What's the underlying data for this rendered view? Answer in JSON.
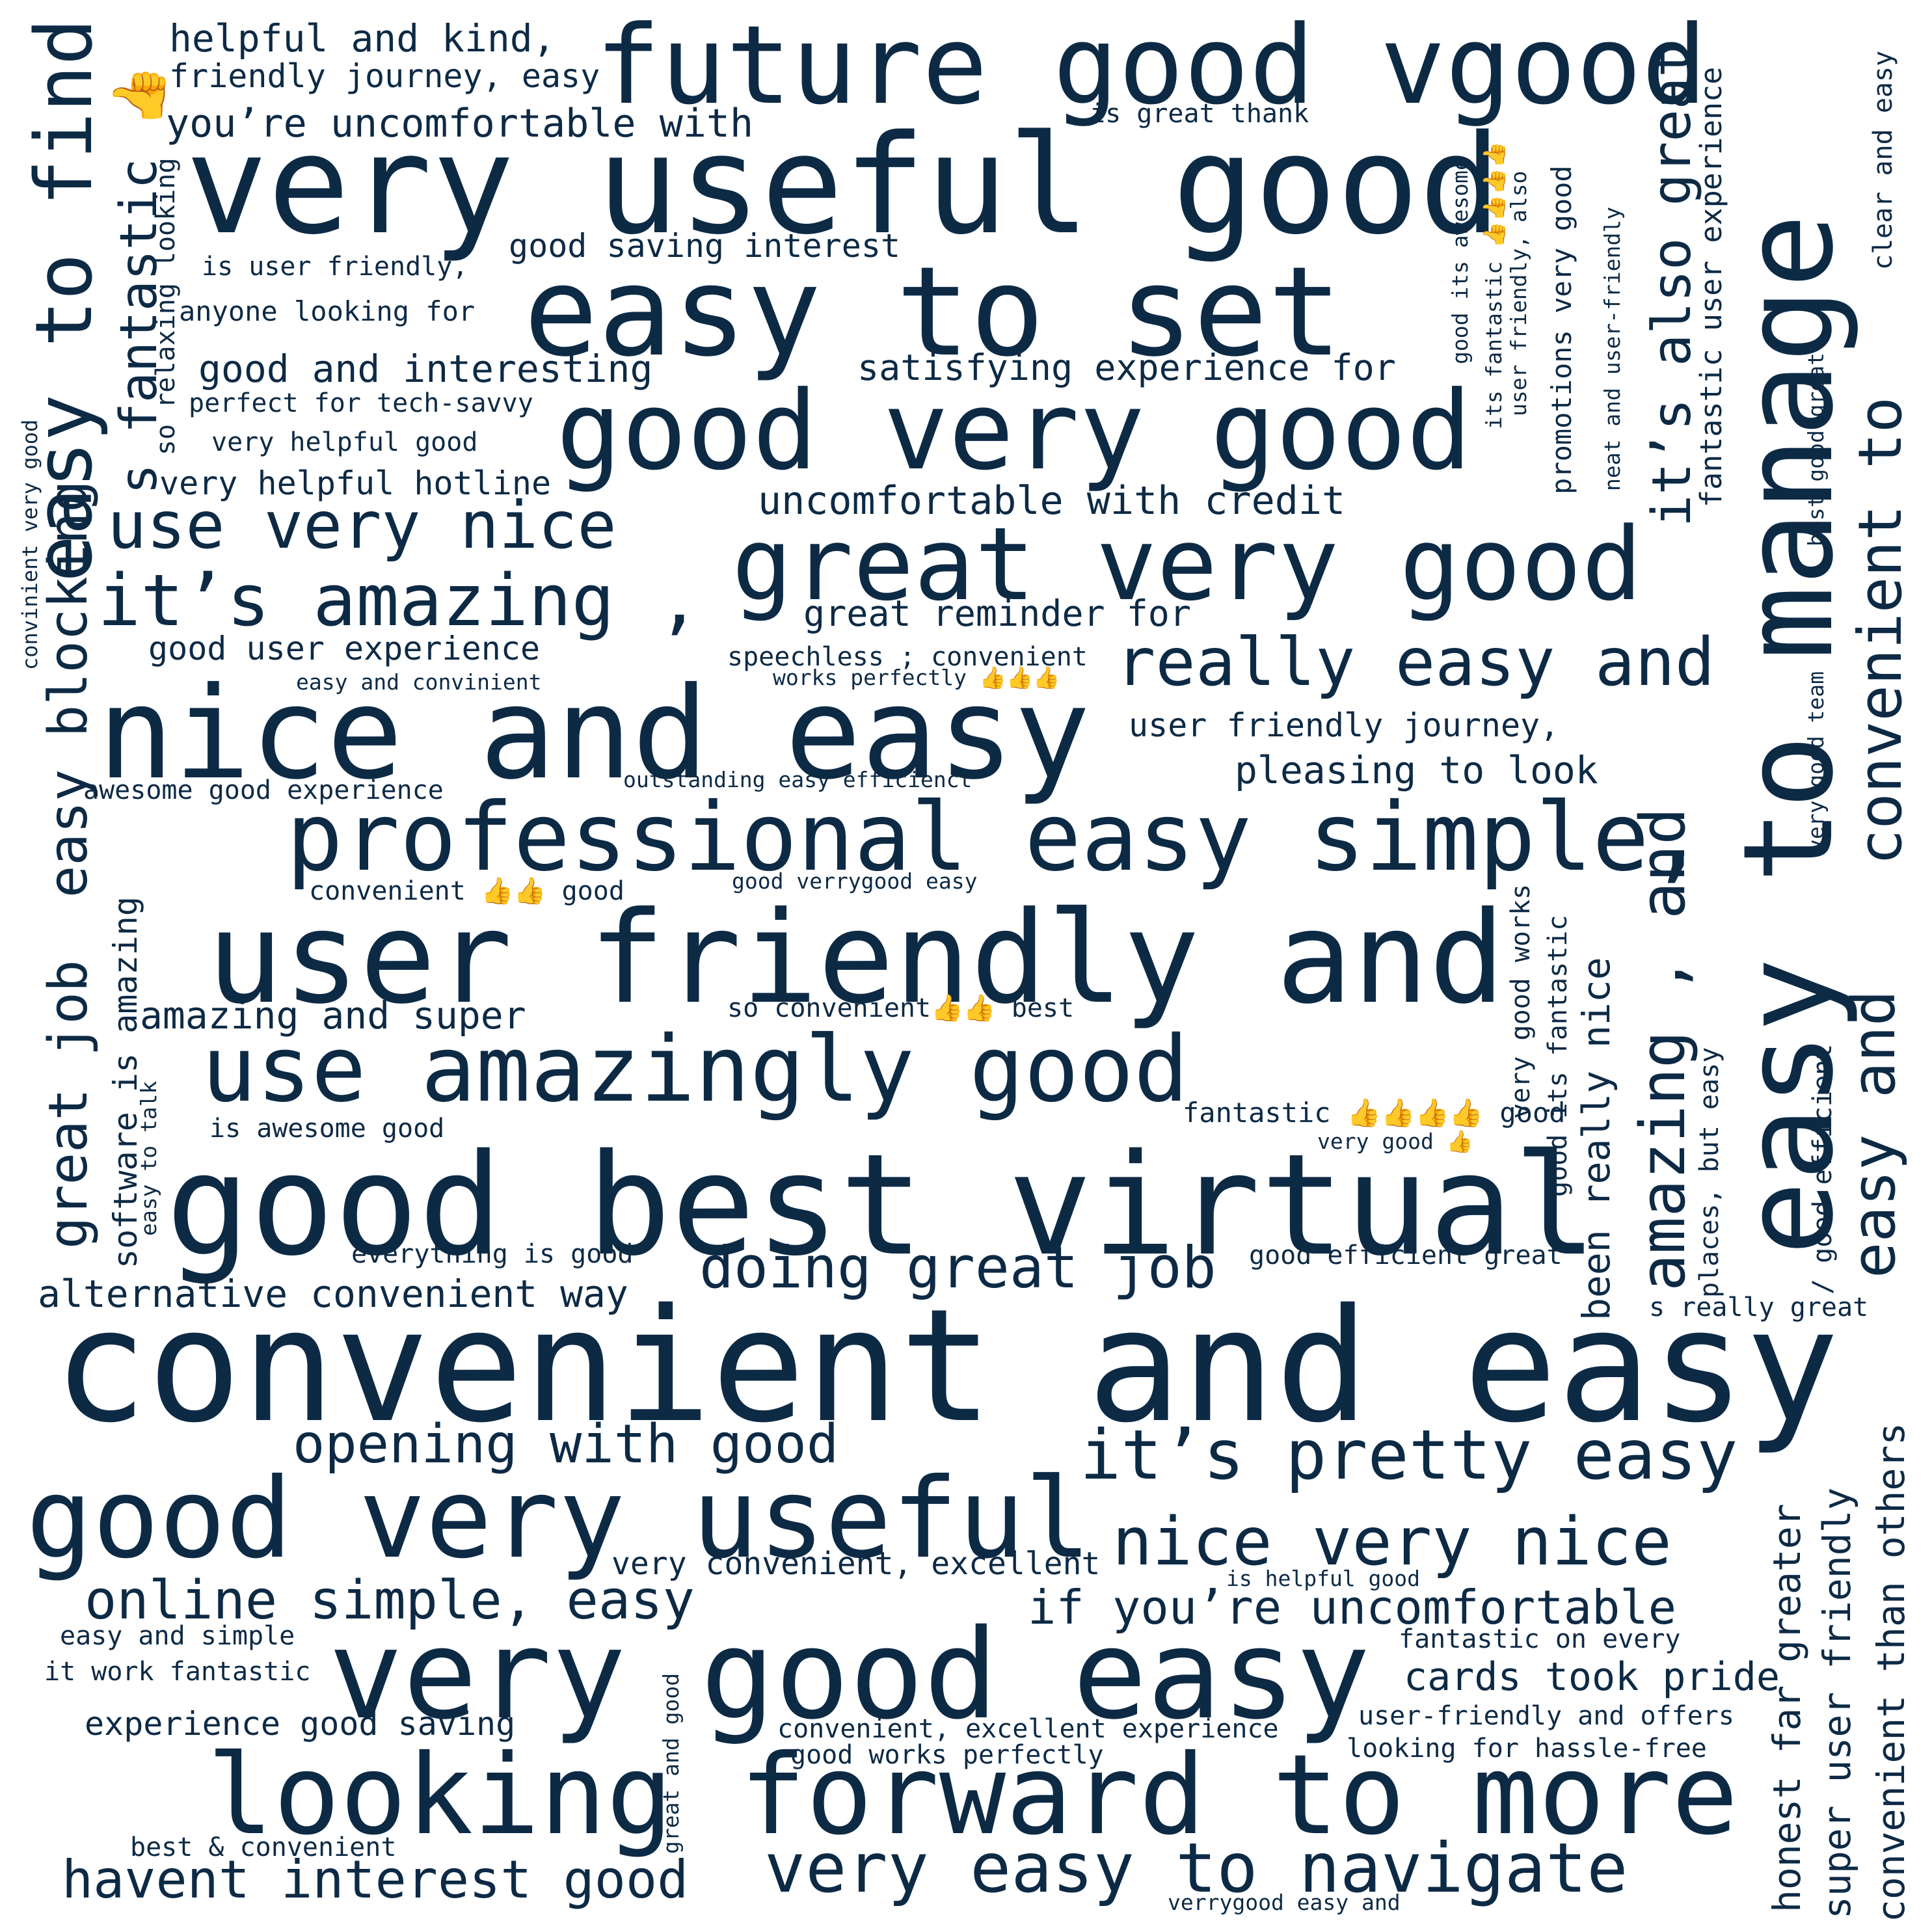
{
  "colors": {
    "background": "#ffffff",
    "text": "#0d2a45"
  },
  "words": {
    "w01": "future good vgood",
    "w02": "very useful good",
    "w03": "easy to set",
    "w04": "good very good",
    "w05": "great very good",
    "w06": "nice and easy",
    "w07": "professional easy simple,",
    "w08": "user friendly and",
    "w09": "use amazingly good",
    "w10": "good best virtual",
    "w11": "convenient and easy",
    "w12": "good very useful",
    "w13": "very good easy",
    "w14": "looking forward to more",
    "w15": "very easy to navigate",
    "w16": "it’s pretty easy",
    "w17": "nice very nice",
    "w18": "really easy and",
    "w19": "it’s amazing ,",
    "w20": "use very nice",
    "w21": "doing great job",
    "w22": "opening with good",
    "w23": "online simple, easy",
    "w24": "havent interest good",
    "w25": "if you’re uncomfortable",
    "w26": "cards took pride",
    "w27": "alternative convenient way",
    "w28": "helpful and kind,",
    "w29": "friendly journey, easy",
    "w30": "you’re uncomfortable with",
    "w31": "good saving interest",
    "w32": "is user friendly,",
    "w33": "anyone looking for",
    "w34": "good and interesting",
    "w35": "perfect for tech-savvy",
    "w36": "very helpful good",
    "w37": "very helpful hotline",
    "w38": "good user experience",
    "w39": "easy and convinient",
    "w40": "awesome good experience",
    "w41": "convenient 👍👍 good",
    "w42": "amazing and super",
    "w43": "is awesome good",
    "w44": "everything is good",
    "w45": "satisfying experience for",
    "w46": "uncomfortable with credit",
    "w47": "great reminder for",
    "w48": "speechless ; convenient",
    "w49": "works perfectly 👍👍👍",
    "w50": "user friendly journey,",
    "w51": "pleasing to look",
    "w52": "outstanding easy efficienct",
    "w53": "good verrygood easy",
    "w54": "so convenient👍👍 best",
    "w55": "fantastic 👍👍👍👍 good",
    "w56": "very good 👍",
    "w57": "good efficient great",
    "w58": "s really great",
    "w59": "very convenient, excellent",
    "w60": "is helpful good",
    "w61": "fantastic on every",
    "w62": "user-friendly and offers",
    "w63": "looking for hassle-free",
    "w64": "convenient, excellent experience",
    "w65": "good works perfectly",
    "w66": "experience good saving",
    "w67": "easy and simple",
    "w68": "it work fantastic",
    "w69": "best & convenient",
    "w70": "verrygood easy and",
    "w71": "is great thank",
    "v01": "easy to find",
    "v02": "s fantastic 👍",
    "v03": "so relaxing looking",
    "v04": "convinient very good",
    "v05": "easy blocking",
    "v06": "great job",
    "v07": "software is amazing",
    "v08": "easy to talk",
    "v09": "great and good",
    "v10": "good its awesome",
    "v11": "its fantastic 👍👍👍👍",
    "v12": "user friendly, also",
    "v13": "promotions very good",
    "v14": "neat and user-friendly",
    "v15": "it’s also great",
    "v16": "fantastic user experience",
    "v17": "clear and easy",
    "v18": "easy to manage",
    "v19": "convenient to",
    "v20": "best good great",
    "v21": "very good team",
    "v22": "amazing , and",
    "v23": "easy and",
    "v24": "very good works",
    "v25": "good its fantastic",
    "v26": "been really nice",
    "v27": "places, but easy",
    "v28": "/ good efficient",
    "v29": "honest far greater",
    "v30": "super user friendly",
    "v31": "convenient than others"
  }
}
